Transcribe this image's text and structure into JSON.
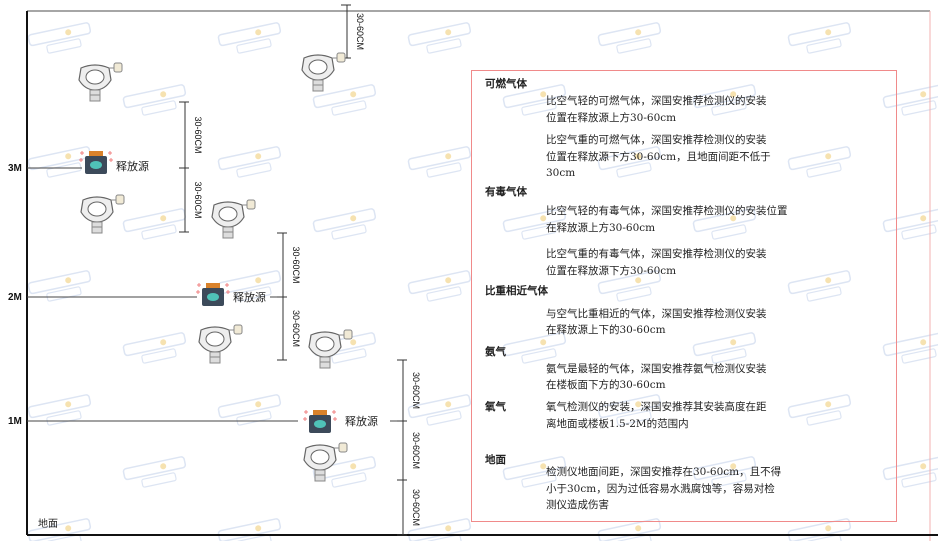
{
  "watermark": {
    "brand": "SINGOAN",
    "cn": "深国安"
  },
  "axis": {
    "levels": [
      "3M",
      "2M",
      "1M"
    ],
    "ground": "地面"
  },
  "release_source_label": "释放源",
  "dimension_label": "30-60CM",
  "colors": {
    "box_border": "#f08a8a",
    "lines": "#222222",
    "source_body": "#3c4a5a",
    "source_cap": "#d9822b",
    "source_face": "#4fc3b8"
  },
  "panel": {
    "sections": [
      {
        "heading": "可燃气体",
        "paragraphs": [
          [
            "比空气轻的可燃气体，深国安推荐检测仪的安装",
            "位置在释放源上方30-60cm"
          ],
          [
            "比空气重的可燃气体，深国安推荐检测仪的安装",
            "位置在释放源下方30-60cm，且地面间距不低于",
            "30cm"
          ]
        ]
      },
      {
        "heading": "有毒气体",
        "paragraphs": [
          [
            "比空气轻的有毒气体，深国安推荐检测仪的安装位置",
            "在释放源上方30-60cm"
          ],
          [
            "比空气重的有毒气体，深国安推荐检测仪的安装",
            "位置在释放源下方30-60cm"
          ]
        ]
      },
      {
        "heading": "比重相近气体",
        "paragraphs": [
          [
            "与空气比重相近的气体，深国安推荐检测仪安装",
            "在释放源上下的30-60cm"
          ]
        ]
      },
      {
        "heading": "氨气",
        "paragraphs": [
          [
            "氨气是最轻的气体，深国安推荐氨气检测仪安装",
            "在楼板面下方的30-60cm"
          ]
        ]
      },
      {
        "heading": "氧气",
        "paragraphs": [
          [
            "氧气检测仪的安装，深国安推荐其安装高度在距",
            "离地面或楼板1.5-2M的范围内"
          ]
        ]
      },
      {
        "heading": "地面",
        "paragraphs": [
          [
            "检测仪地面间距，深国安推荐在30-60cm，且不得",
            "小于30cm，因为过低容易水溅腐蚀等，容易对检",
            "测仪造成伤害"
          ]
        ]
      }
    ]
  }
}
